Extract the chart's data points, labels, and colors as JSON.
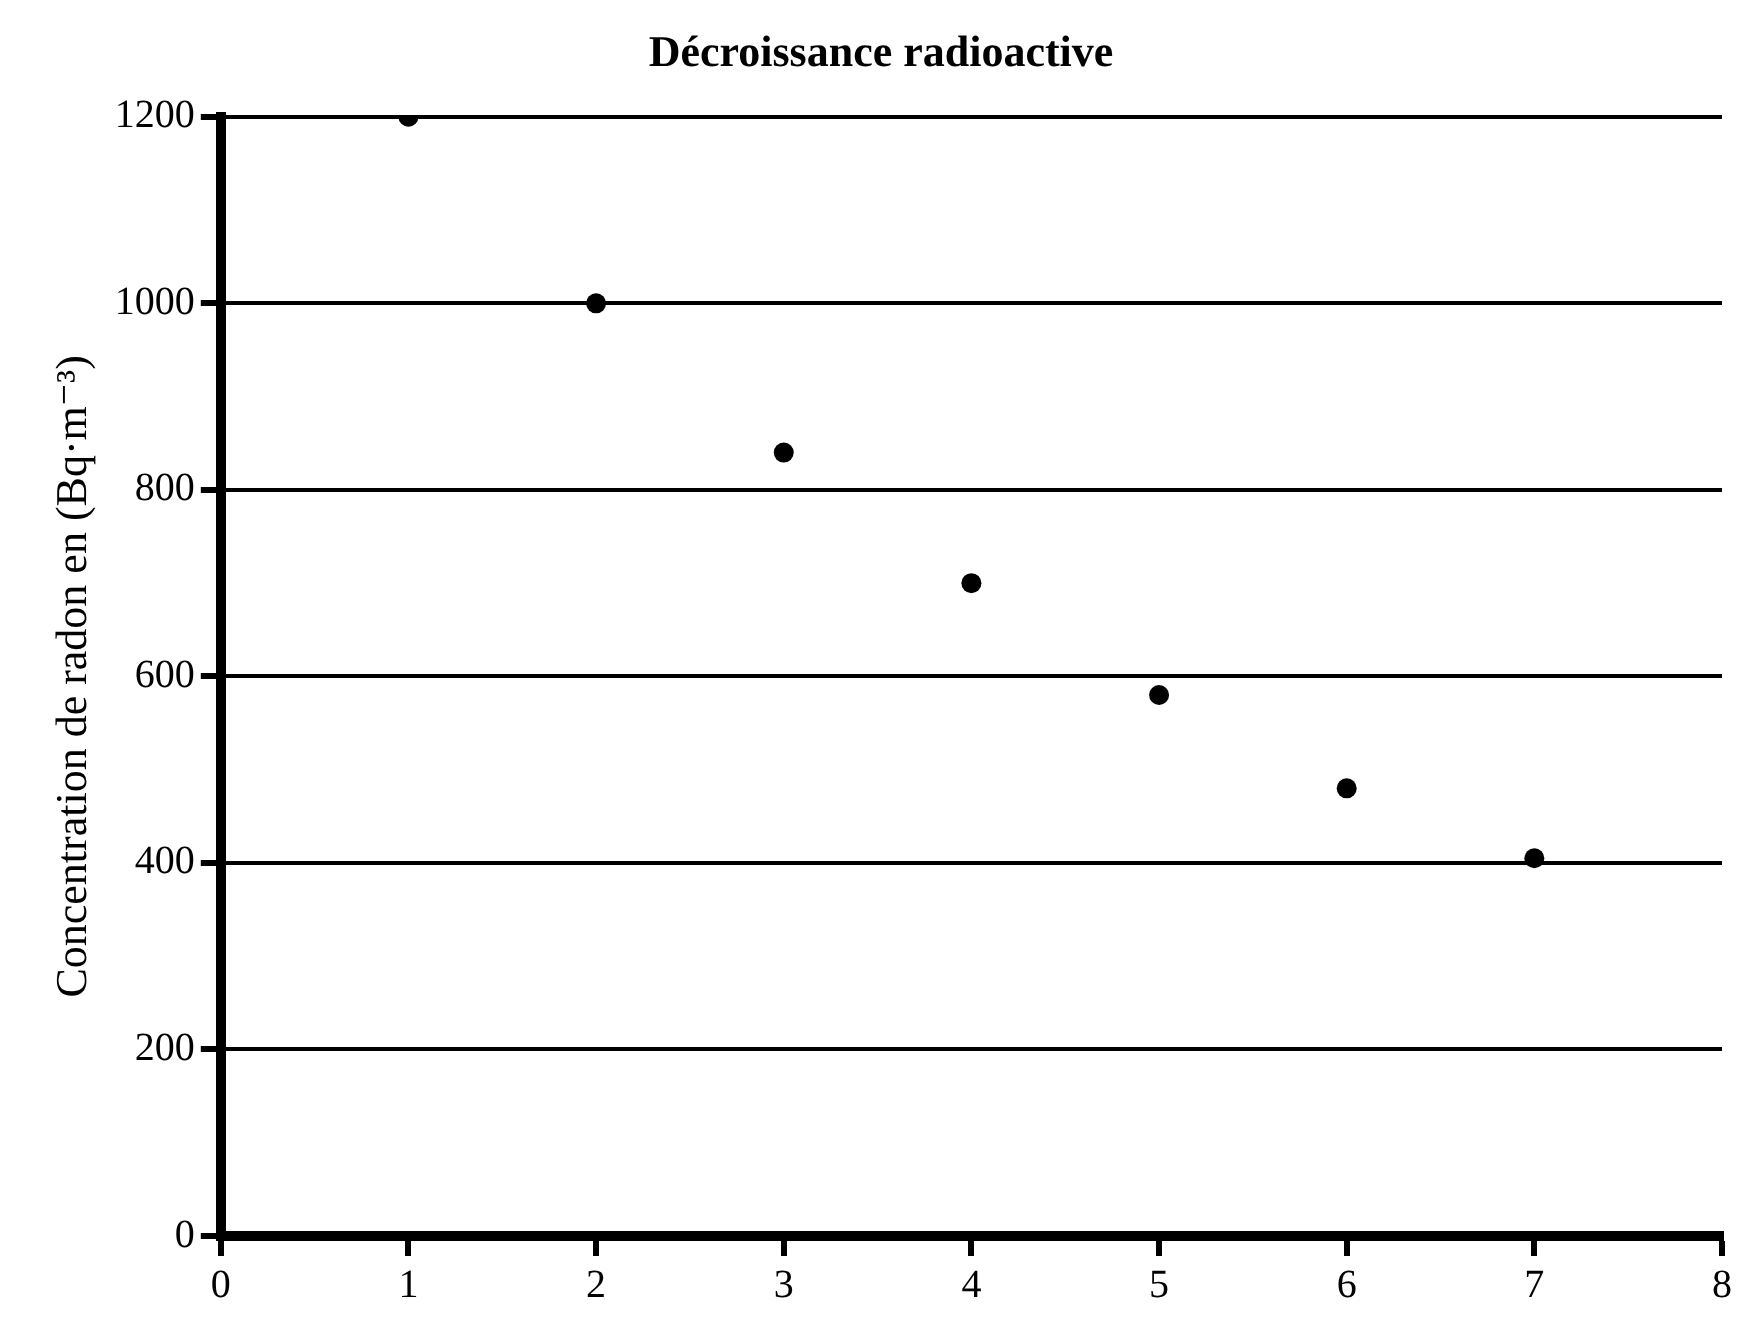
{
  "chart_data": {
    "type": "scatter",
    "title": "Décroissance radioactive",
    "ylabel": "Concentration de radon en (Bq·m⁻³)",
    "x": [
      1,
      2,
      3,
      4,
      5,
      6,
      7
    ],
    "series": [
      {
        "color": "#000000",
        "values": [
          1200,
          1000,
          840,
          700,
          580,
          480,
          405
        ]
      }
    ],
    "xlim": [
      0,
      8
    ],
    "xticks": [
      0,
      1,
      2,
      3,
      4,
      5,
      6,
      7,
      8
    ],
    "ylim": [
      0,
      1200
    ],
    "yticks": [
      0,
      200,
      400,
      600,
      800,
      1000,
      1200
    ],
    "grid": "y",
    "marker": "circle",
    "legend": false
  }
}
